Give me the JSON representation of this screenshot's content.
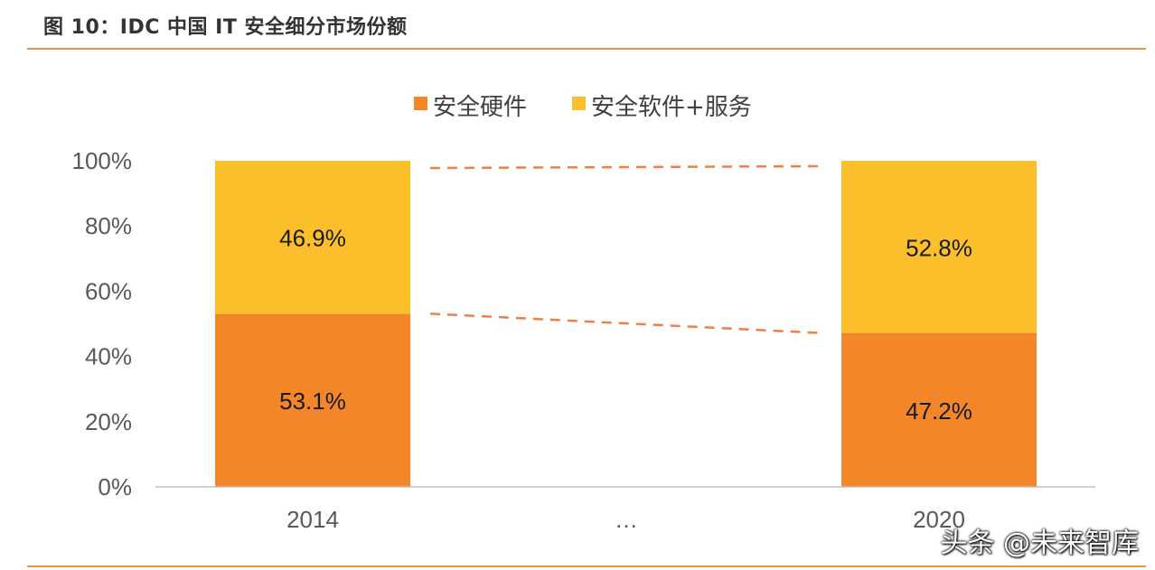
{
  "figure_title": "图 10：IDC 中国 IT 安全细分市场份额",
  "watermark": "头条 @未来智库",
  "colors": {
    "hardware": "#F4862A",
    "software": "#FBBF2C",
    "rule": "#E8963C",
    "axis": "#BFBFBF",
    "connector": "#EE7F45"
  },
  "chart_data": {
    "type": "bar",
    "stacked": true,
    "categories": [
      "2014",
      "…",
      "2020"
    ],
    "series": [
      {
        "name": "安全硬件",
        "values": [
          53.1,
          null,
          47.2
        ],
        "labels": [
          "53.1%",
          "",
          "47.2%"
        ]
      },
      {
        "name": "安全软件+服务",
        "values": [
          46.9,
          null,
          52.8
        ],
        "labels": [
          "46.9%",
          "",
          "52.8%"
        ]
      }
    ],
    "yticks": [
      "0%",
      "20%",
      "40%",
      "60%",
      "80%",
      "100%"
    ],
    "ylim": [
      0,
      100
    ],
    "legend_position": "top",
    "grid": false,
    "connector_lines": "dashed"
  }
}
